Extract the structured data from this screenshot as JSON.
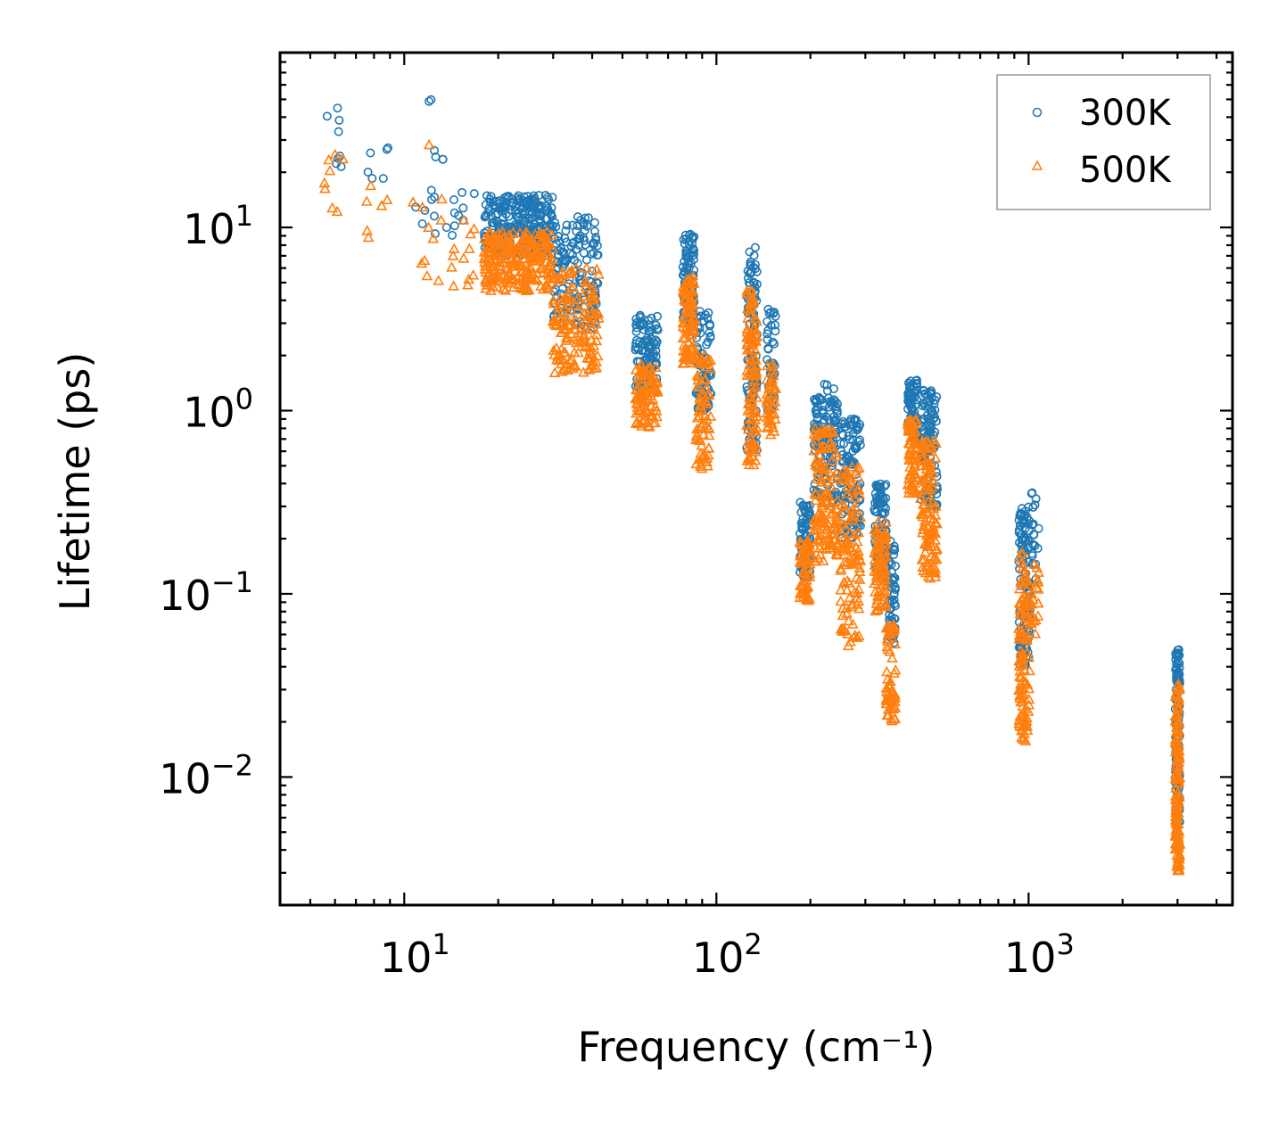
{
  "chart_data": {
    "type": "scatter",
    "title": "",
    "xlabel": "Frequency (cm⁻¹)",
    "ylabel": "Lifetime (ps)",
    "xscale": "log",
    "yscale": "log",
    "xlim": [
      4.0,
      4500
    ],
    "ylim": [
      0.002,
      90
    ],
    "x_ticks": [
      10,
      100,
      1000
    ],
    "x_tick_labels": [
      {
        "base": "10",
        "exp": "1"
      },
      {
        "base": "10",
        "exp": "2"
      },
      {
        "base": "10",
        "exp": "3"
      }
    ],
    "y_ticks": [
      0.01,
      0.1,
      1,
      10
    ],
    "y_tick_labels": [
      {
        "base": "10",
        "exp": "−2"
      },
      {
        "base": "10",
        "exp": "−1"
      },
      {
        "base": "10",
        "exp": "0"
      },
      {
        "base": "10",
        "exp": "1"
      }
    ],
    "legend_position": "top-right",
    "series": [
      {
        "name": "300K",
        "marker": "circle",
        "color": "#1f77b4",
        "clusters": [
          {
            "x": [
              5.5,
              6.5
            ],
            "y": [
              18,
              45
            ],
            "n": 8
          },
          {
            "x": [
              7.5,
              9.0
            ],
            "y": [
              14,
              30
            ],
            "n": 6
          },
          {
            "x": [
              10.0,
              17.0
            ],
            "y": [
              9,
              28
            ],
            "n": 22
          },
          {
            "x": [
              12.0,
              12.3
            ],
            "y": [
              45,
              52
            ],
            "n": 2
          },
          {
            "x": [
              18,
              30
            ],
            "y": [
              7,
              15
            ],
            "n": 260
          },
          {
            "x": [
              30,
              42
            ],
            "y": [
              2.8,
              12
            ],
            "n": 140
          },
          {
            "x": [
              55,
              65
            ],
            "y": [
              1.3,
              3.4
            ],
            "n": 90
          },
          {
            "x": [
              78,
              85
            ],
            "y": [
              3.0,
              9.5
            ],
            "n": 90
          },
          {
            "x": [
              86,
              96
            ],
            "y": [
              1.0,
              3.5
            ],
            "n": 70
          },
          {
            "x": [
              125,
              135
            ],
            "y": [
              0.6,
              8.0
            ],
            "n": 110
          },
          {
            "x": [
              145,
              155
            ],
            "y": [
              1.0,
              3.6
            ],
            "n": 40
          },
          {
            "x": [
              185,
              200
            ],
            "y": [
              0.12,
              0.32
            ],
            "n": 70
          },
          {
            "x": [
              205,
              245
            ],
            "y": [
              0.3,
              1.4
            ],
            "n": 130
          },
          {
            "x": [
              250,
              290
            ],
            "y": [
              0.2,
              0.9
            ],
            "n": 110
          },
          {
            "x": [
              320,
              350
            ],
            "y": [
              0.12,
              0.4
            ],
            "n": 80
          },
          {
            "x": [
              350,
              375
            ],
            "y": [
              0.05,
              0.2
            ],
            "n": 60
          },
          {
            "x": [
              410,
              440
            ],
            "y": [
              0.7,
              1.5
            ],
            "n": 70
          },
          {
            "x": [
              450,
              510
            ],
            "y": [
              0.3,
              1.3
            ],
            "n": 110
          },
          {
            "x": [
              930,
              1010
            ],
            "y": [
              0.04,
              0.3
            ],
            "n": 110
          },
          {
            "x": [
              1020,
              1080
            ],
            "y": [
              0.12,
              0.38
            ],
            "n": 20
          },
          {
            "x": [
              2950,
              3050
            ],
            "y": [
              0.005,
              0.05
            ],
            "n": 140
          }
        ]
      },
      {
        "name": "500K",
        "marker": "triangle",
        "color": "#ff7f0e",
        "clusters": [
          {
            "x": [
              5.5,
              6.5
            ],
            "y": [
              10.5,
              25
            ],
            "n": 8
          },
          {
            "x": [
              7.5,
              9.0
            ],
            "y": [
              8.5,
              17
            ],
            "n": 6
          },
          {
            "x": [
              10.0,
              17.0
            ],
            "y": [
              4.5,
              15
            ],
            "n": 22
          },
          {
            "x": [
              12.0,
              12.3
            ],
            "y": [
              28,
              32
            ],
            "n": 1
          },
          {
            "x": [
              18,
              30
            ],
            "y": [
              4.5,
              9.5
            ],
            "n": 260
          },
          {
            "x": [
              30,
              42
            ],
            "y": [
              1.6,
              6.0
            ],
            "n": 140
          },
          {
            "x": [
              55,
              65
            ],
            "y": [
              0.8,
              1.8
            ],
            "n": 90
          },
          {
            "x": [
              78,
              85
            ],
            "y": [
              1.8,
              5.5
            ],
            "n": 90
          },
          {
            "x": [
              86,
              96
            ],
            "y": [
              0.48,
              2.0
            ],
            "n": 70
          },
          {
            "x": [
              125,
              135
            ],
            "y": [
              0.5,
              4.5
            ],
            "n": 110
          },
          {
            "x": [
              145,
              155
            ],
            "y": [
              0.7,
              1.8
            ],
            "n": 40
          },
          {
            "x": [
              185,
              200
            ],
            "y": [
              0.09,
              0.2
            ],
            "n": 70
          },
          {
            "x": [
              205,
              245
            ],
            "y": [
              0.15,
              0.8
            ],
            "n": 130
          },
          {
            "x": [
              250,
              290
            ],
            "y": [
              0.05,
              0.5
            ],
            "n": 110
          },
          {
            "x": [
              320,
              350
            ],
            "y": [
              0.08,
              0.25
            ],
            "n": 80
          },
          {
            "x": [
              350,
              375
            ],
            "y": [
              0.02,
              0.07
            ],
            "n": 60
          },
          {
            "x": [
              410,
              440
            ],
            "y": [
              0.35,
              0.9
            ],
            "n": 70
          },
          {
            "x": [
              450,
              510
            ],
            "y": [
              0.12,
              0.7
            ],
            "n": 110
          },
          {
            "x": [
              930,
              1010
            ],
            "y": [
              0.015,
              0.17
            ],
            "n": 110
          },
          {
            "x": [
              1020,
              1080
            ],
            "y": [
              0.06,
              0.17
            ],
            "n": 20
          },
          {
            "x": [
              2950,
              3050
            ],
            "y": [
              0.003,
              0.033
            ],
            "n": 140
          }
        ]
      }
    ]
  }
}
